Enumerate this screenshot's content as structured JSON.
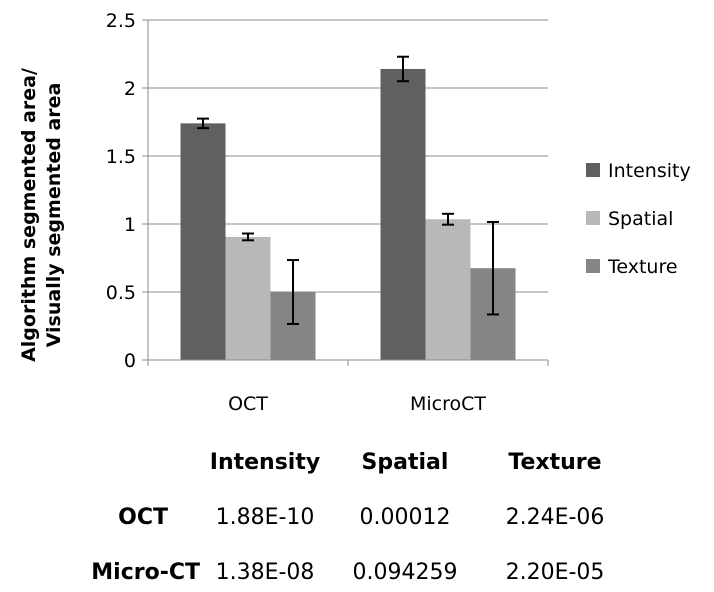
{
  "chart_data": {
    "type": "bar",
    "ylabel": [
      "Algorithm segmented area/",
      "Visually segmented area"
    ],
    "xlabel": "",
    "ylim": [
      0,
      2.5
    ],
    "yticks": [
      "0",
      "0.5",
      "1",
      "1.5",
      "2",
      "2.5"
    ],
    "categories": [
      "OCT",
      "MicroCT"
    ],
    "grid": true,
    "legend_position": "right",
    "series": [
      {
        "name": "Intensity",
        "values": [
          1.74,
          2.14
        ],
        "errors": [
          0.035,
          0.09
        ],
        "color": "#606060"
      },
      {
        "name": "Spatial",
        "values": [
          0.905,
          1.035
        ],
        "errors": [
          0.025,
          0.04
        ],
        "color": "#b8b8b8"
      },
      {
        "name": "Texture",
        "values": [
          0.5,
          0.675
        ],
        "errors": [
          0.235,
          0.34
        ],
        "color": "#858585"
      }
    ]
  },
  "pvalue_table": {
    "columns": [
      "Intensity",
      "Spatial",
      "Texture"
    ],
    "rows": [
      {
        "label": "OCT",
        "values": [
          "1.88E-10",
          "0.00012",
          "2.24E-06"
        ]
      },
      {
        "label": "Micro-CT",
        "values": [
          "1.38E-08",
          "0.094259",
          "2.20E-05"
        ]
      }
    ]
  }
}
